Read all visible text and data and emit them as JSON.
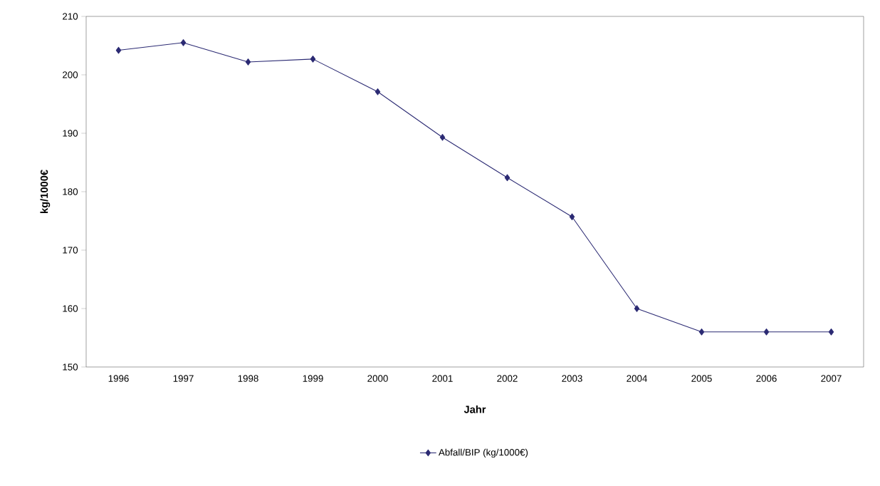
{
  "chart_data": {
    "type": "line",
    "xlabel": "Jahr",
    "ylabel": "kg/1000€",
    "categories": [
      "1996",
      "1997",
      "1998",
      "1999",
      "2000",
      "2001",
      "2002",
      "2003",
      "2004",
      "2005",
      "2006",
      "2007"
    ],
    "series": [
      {
        "name": "Abfall/BIP (kg/1000€)",
        "color": "#2b2a73",
        "values": [
          204.2,
          205.5,
          202.2,
          202.7,
          197.1,
          189.3,
          182.4,
          175.7,
          160,
          156,
          156,
          156
        ]
      }
    ],
    "ylim": [
      150,
      210
    ],
    "yticks": [
      150,
      160,
      170,
      180,
      190,
      200,
      210
    ],
    "grid": false,
    "legend": "bottom",
    "marker": "diamond",
    "line_style": "solid"
  }
}
